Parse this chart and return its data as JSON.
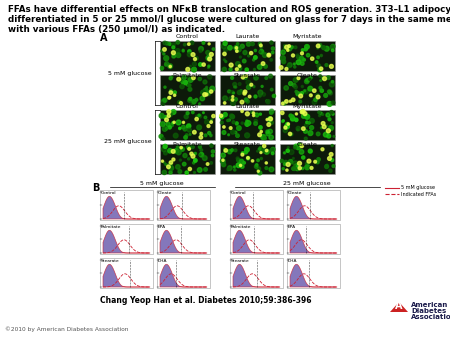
{
  "title_line1": "FFAs have differential effects on NFκB translocation and ROS generation. 3T3–L1 adipocytes",
  "title_line2": "differentiated in 5 or 25 mmol/l glucose were cultured on glass for 7 days in the same medium",
  "title_line3": "with various FFAs (250 μmol/l) as indicated.",
  "citation": "Chang Yeop Han et al. Diabetes 2010;59:386-396",
  "copyright": "©2010 by American Diabetes Association",
  "label_A": "A",
  "label_B": "B",
  "fig_bg": "#ffffff",
  "grid_A_row1": [
    "Control",
    "Laurate",
    "Myristate"
  ],
  "grid_A_row2": [
    "Palmitate",
    "Stearate",
    "Oleate"
  ],
  "grid_A_label_5mM": "5 mM glucose",
  "grid_A_label_25mM": "25 mM glucose",
  "panel_B_legend_5mM": "5 mM glucose",
  "panel_B_legend_FFA": "Indicated FFAs",
  "panel_B_header_5mM": "5 mM glucose",
  "panel_B_header_25mM": "25 mM glucose",
  "panel_B_cells": [
    [
      "Control",
      "Oleate",
      "Control",
      "Oleate"
    ],
    [
      "Palmitate",
      "EPA",
      "Palmitate",
      "EPA"
    ],
    [
      "Stearate",
      "DHA",
      "Stearate",
      "DHA"
    ]
  ],
  "ada_logo_color": "#cc2222",
  "ada_text_color": "#1a1a4a",
  "hist_fill_color": "#6655aa",
  "hist_line_color": "#cc2233",
  "hist_dashed_color": "#cc2233"
}
